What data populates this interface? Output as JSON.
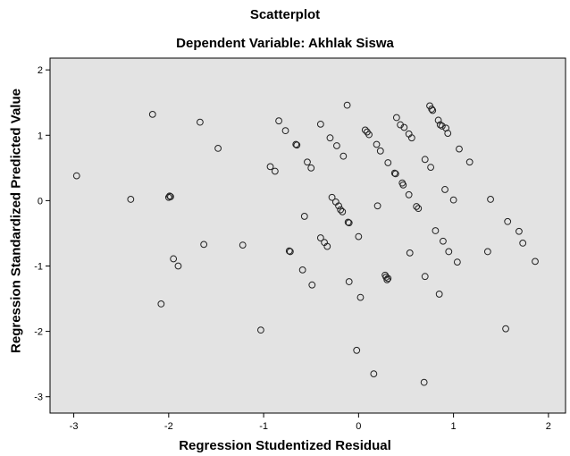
{
  "chart_data": {
    "type": "scatter",
    "title": "Scatterplot",
    "subtitle": "Dependent Variable: Akhlak Siswa",
    "xlabel": "Regression Studentized Residual",
    "ylabel": "Regression Standardized Predicted Value",
    "xlim": [
      -3.25,
      2.18
    ],
    "ylim": [
      -3.25,
      2.18
    ],
    "xticks": [
      -3,
      -2,
      -1,
      0,
      1,
      2
    ],
    "yticks": [
      -3,
      -2,
      -1,
      0,
      1,
      2
    ],
    "grid": false,
    "legend": "none",
    "colors": {
      "plot_background": "#e3e3e3",
      "marker_stroke": "#222222"
    },
    "points": [
      {
        "x": -2.97,
        "y": 0.38
      },
      {
        "x": -2.4,
        "y": 0.02
      },
      {
        "x": -2.17,
        "y": 1.32
      },
      {
        "x": -2.08,
        "y": -1.58
      },
      {
        "x": -2.0,
        "y": 0.05
      },
      {
        "x": -1.99,
        "y": 0.07
      },
      {
        "x": -1.98,
        "y": 0.06
      },
      {
        "x": -1.95,
        "y": -0.89
      },
      {
        "x": -1.9,
        "y": -1.0
      },
      {
        "x": -1.67,
        "y": 1.2
      },
      {
        "x": -1.63,
        "y": -0.67
      },
      {
        "x": -1.48,
        "y": 0.8
      },
      {
        "x": -1.22,
        "y": -0.68
      },
      {
        "x": -1.03,
        "y": -1.98
      },
      {
        "x": -0.93,
        "y": 0.52
      },
      {
        "x": -0.88,
        "y": 0.45
      },
      {
        "x": -0.84,
        "y": 1.22
      },
      {
        "x": -0.77,
        "y": 1.07
      },
      {
        "x": -0.73,
        "y": -0.77
      },
      {
        "x": -0.72,
        "y": -0.78
      },
      {
        "x": -0.66,
        "y": 0.86
      },
      {
        "x": -0.65,
        "y": 0.85
      },
      {
        "x": -0.59,
        "y": -1.06
      },
      {
        "x": -0.57,
        "y": -0.24
      },
      {
        "x": -0.54,
        "y": 0.59
      },
      {
        "x": -0.5,
        "y": 0.5
      },
      {
        "x": -0.49,
        "y": -1.29
      },
      {
        "x": -0.4,
        "y": 1.17
      },
      {
        "x": -0.4,
        "y": -0.57
      },
      {
        "x": -0.36,
        "y": -0.64
      },
      {
        "x": -0.33,
        "y": -0.7
      },
      {
        "x": -0.3,
        "y": 0.96
      },
      {
        "x": -0.28,
        "y": 0.05
      },
      {
        "x": -0.24,
        "y": -0.02
      },
      {
        "x": -0.23,
        "y": 0.84
      },
      {
        "x": -0.21,
        "y": -0.08
      },
      {
        "x": -0.19,
        "y": -0.14
      },
      {
        "x": -0.17,
        "y": -0.17
      },
      {
        "x": -0.16,
        "y": 0.68
      },
      {
        "x": -0.12,
        "y": 1.46
      },
      {
        "x": -0.11,
        "y": -0.33
      },
      {
        "x": -0.1,
        "y": -0.34
      },
      {
        "x": -0.1,
        "y": -1.24
      },
      {
        "x": -0.02,
        "y": -2.29
      },
      {
        "x": 0.0,
        "y": -0.55
      },
      {
        "x": 0.02,
        "y": -1.48
      },
      {
        "x": 0.07,
        "y": 1.08
      },
      {
        "x": 0.09,
        "y": 1.05
      },
      {
        "x": 0.11,
        "y": 1.01
      },
      {
        "x": 0.16,
        "y": -2.65
      },
      {
        "x": 0.19,
        "y": 0.86
      },
      {
        "x": 0.2,
        "y": -0.08
      },
      {
        "x": 0.23,
        "y": 0.76
      },
      {
        "x": 0.28,
        "y": -1.14
      },
      {
        "x": 0.29,
        "y": -1.17
      },
      {
        "x": 0.3,
        "y": -1.21
      },
      {
        "x": 0.31,
        "y": -1.19
      },
      {
        "x": 0.31,
        "y": 0.58
      },
      {
        "x": 0.38,
        "y": 0.42
      },
      {
        "x": 0.39,
        "y": 0.41
      },
      {
        "x": 0.4,
        "y": 1.27
      },
      {
        "x": 0.44,
        "y": 1.16
      },
      {
        "x": 0.46,
        "y": 0.27
      },
      {
        "x": 0.47,
        "y": 0.24
      },
      {
        "x": 0.48,
        "y": 1.12
      },
      {
        "x": 0.53,
        "y": 1.02
      },
      {
        "x": 0.53,
        "y": 0.09
      },
      {
        "x": 0.54,
        "y": -0.8
      },
      {
        "x": 0.56,
        "y": 0.96
      },
      {
        "x": 0.61,
        "y": -0.09
      },
      {
        "x": 0.63,
        "y": -0.12
      },
      {
        "x": 0.69,
        "y": -2.78
      },
      {
        "x": 0.7,
        "y": 0.63
      },
      {
        "x": 0.7,
        "y": -1.16
      },
      {
        "x": 0.75,
        "y": 1.45
      },
      {
        "x": 0.76,
        "y": 0.51
      },
      {
        "x": 0.77,
        "y": 1.4
      },
      {
        "x": 0.78,
        "y": 1.38
      },
      {
        "x": 0.81,
        "y": -0.46
      },
      {
        "x": 0.84,
        "y": 1.23
      },
      {
        "x": 0.85,
        "y": -1.43
      },
      {
        "x": 0.86,
        "y": 1.16
      },
      {
        "x": 0.88,
        "y": 1.14
      },
      {
        "x": 0.89,
        "y": -0.62
      },
      {
        "x": 0.91,
        "y": 0.17
      },
      {
        "x": 0.92,
        "y": 1.11
      },
      {
        "x": 0.94,
        "y": 1.03
      },
      {
        "x": 0.95,
        "y": -0.78
      },
      {
        "x": 1.0,
        "y": 0.01
      },
      {
        "x": 1.04,
        "y": -0.94
      },
      {
        "x": 1.06,
        "y": 0.79
      },
      {
        "x": 1.17,
        "y": 0.59
      },
      {
        "x": 1.36,
        "y": -0.78
      },
      {
        "x": 1.39,
        "y": 0.02
      },
      {
        "x": 1.55,
        "y": -1.96
      },
      {
        "x": 1.57,
        "y": -0.32
      },
      {
        "x": 1.69,
        "y": -0.47
      },
      {
        "x": 1.73,
        "y": -0.65
      },
      {
        "x": 1.86,
        "y": -0.93
      }
    ]
  }
}
